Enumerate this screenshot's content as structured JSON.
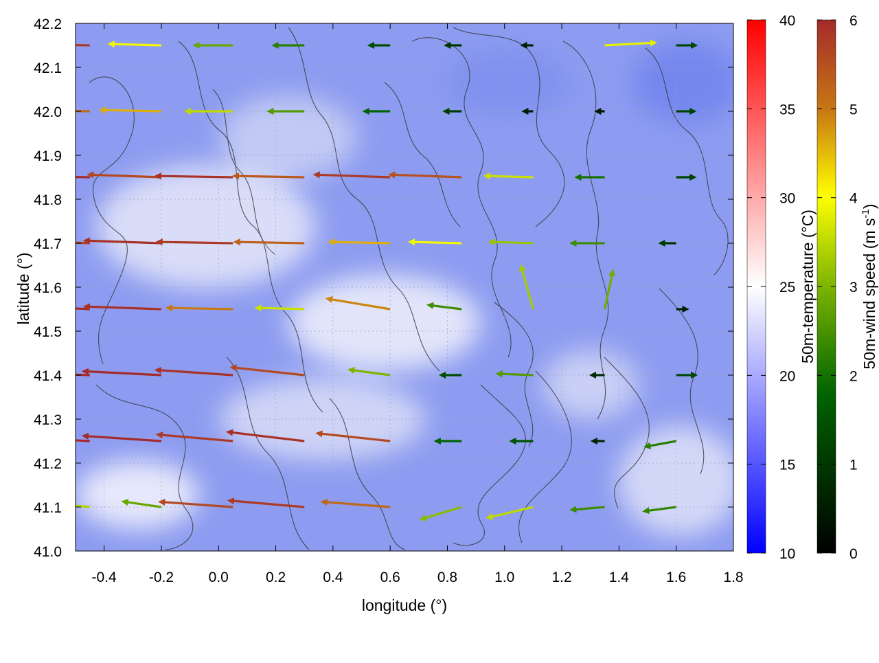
{
  "chart_data": {
    "type": "vector-field",
    "title": "",
    "xlabel": "longitude (°)",
    "ylabel": "latitude (°)",
    "xlim": [
      -0.5,
      1.8
    ],
    "ylim": [
      41.0,
      42.2
    ],
    "xticks": [
      "-0.4",
      "-0.2",
      "0.0",
      "0.2",
      "0.4",
      "0.6",
      "0.8",
      "1.0",
      "1.2",
      "1.4",
      "1.6",
      "1.8"
    ],
    "xtick_values": [
      -0.4,
      -0.2,
      0.0,
      0.2,
      0.4,
      0.6,
      0.8,
      1.0,
      1.2,
      1.4,
      1.6,
      1.8
    ],
    "yticks": [
      "41.0",
      "41.1",
      "41.2",
      "41.3",
      "41.4",
      "41.5",
      "41.6",
      "41.7",
      "41.8",
      "41.9",
      "42.0",
      "42.1",
      "42.2"
    ],
    "ytick_values": [
      41.0,
      41.1,
      41.2,
      41.3,
      41.4,
      41.5,
      41.6,
      41.7,
      41.8,
      41.9,
      42.0,
      42.1,
      42.2
    ],
    "grid": true,
    "background_field": {
      "label": "50m-temperature (°C)",
      "range": [
        10,
        40
      ],
      "ticks": [
        "10",
        "15",
        "20",
        "25",
        "30",
        "35",
        "40"
      ],
      "tick_values": [
        10,
        15,
        20,
        25,
        30,
        35,
        40
      ],
      "colormap": [
        "#0000ff",
        "#ffffff",
        "#ff0000"
      ],
      "field_color_main": "#8c9cf0",
      "field_color_light": "#dfe3f8"
    },
    "vector_colorbar": {
      "label_main": "50m-wind speed (m s",
      "label_sup": "-1",
      "label_end": ")",
      "range": [
        0,
        6
      ],
      "ticks": [
        "0",
        "1",
        "2",
        "3",
        "4",
        "5",
        "6"
      ],
      "tick_values": [
        0,
        1,
        2,
        3,
        4,
        5,
        6
      ],
      "colormap": [
        "#000000",
        "#006400",
        "#7cb400",
        "#ffff00",
        "#c87814",
        "#a52a2a"
      ]
    },
    "vectors": [
      {
        "lon": -0.45,
        "lat": 42.15,
        "u": -5.8,
        "v": 0.1,
        "speed": 5.8
      },
      {
        "lon": -0.2,
        "lat": 42.15,
        "u": -3.9,
        "v": 0.1,
        "speed": 3.9
      },
      {
        "lon": 0.05,
        "lat": 42.15,
        "u": -2.8,
        "v": 0.0,
        "speed": 2.8
      },
      {
        "lon": 0.3,
        "lat": 42.15,
        "u": -2.2,
        "v": 0.0,
        "speed": 2.2
      },
      {
        "lon": 0.6,
        "lat": 42.15,
        "u": -1.4,
        "v": 0.0,
        "speed": 1.4
      },
      {
        "lon": 0.85,
        "lat": 42.15,
        "u": -1.0,
        "v": 0.0,
        "speed": 1.0
      },
      {
        "lon": 1.1,
        "lat": 42.15,
        "u": -0.6,
        "v": 0.0,
        "speed": 0.6
      },
      {
        "lon": 1.35,
        "lat": 42.15,
        "u": 3.8,
        "v": 0.2,
        "speed": 3.8
      },
      {
        "lon": 1.6,
        "lat": 42.15,
        "u": 1.3,
        "v": 0.0,
        "speed": 1.3
      },
      {
        "lon": -0.45,
        "lat": 42.0,
        "u": -5.2,
        "v": 0.1,
        "speed": 5.2
      },
      {
        "lon": -0.2,
        "lat": 42.0,
        "u": -4.6,
        "v": 0.1,
        "speed": 4.6
      },
      {
        "lon": 0.05,
        "lat": 42.0,
        "u": -3.5,
        "v": 0.0,
        "speed": 3.5
      },
      {
        "lon": 0.3,
        "lat": 42.0,
        "u": -2.6,
        "v": 0.0,
        "speed": 2.6
      },
      {
        "lon": 0.6,
        "lat": 42.0,
        "u": -1.8,
        "v": 0.0,
        "speed": 1.8
      },
      {
        "lon": 0.85,
        "lat": 42.0,
        "u": -1.1,
        "v": 0.0,
        "speed": 1.1
      },
      {
        "lon": 1.1,
        "lat": 42.0,
        "u": -0.5,
        "v": 0.0,
        "speed": 0.5
      },
      {
        "lon": 1.35,
        "lat": 42.0,
        "u": -0.4,
        "v": 0.0,
        "speed": 0.4
      },
      {
        "lon": 1.6,
        "lat": 42.0,
        "u": 1.2,
        "v": 0.0,
        "speed": 1.2
      },
      {
        "lon": -0.45,
        "lat": 41.85,
        "u": -6.0,
        "v": 0.1,
        "speed": 6.0
      },
      {
        "lon": -0.2,
        "lat": 41.85,
        "u": -5.6,
        "v": 0.2,
        "speed": 5.6
      },
      {
        "lon": 0.05,
        "lat": 41.85,
        "u": -5.9,
        "v": 0.1,
        "speed": 5.9
      },
      {
        "lon": 0.3,
        "lat": 41.85,
        "u": -5.4,
        "v": 0.1,
        "speed": 5.4
      },
      {
        "lon": 0.6,
        "lat": 41.85,
        "u": -5.8,
        "v": 0.2,
        "speed": 5.8
      },
      {
        "lon": 0.85,
        "lat": 41.85,
        "u": -5.5,
        "v": 0.2,
        "speed": 5.5
      },
      {
        "lon": 1.1,
        "lat": 41.85,
        "u": -3.6,
        "v": 0.1,
        "speed": 3.6
      },
      {
        "lon": 1.35,
        "lat": 41.85,
        "u": -2.0,
        "v": 0.0,
        "speed": 2.0
      },
      {
        "lon": 1.6,
        "lat": 41.85,
        "u": 1.2,
        "v": 0.0,
        "speed": 1.2
      },
      {
        "lon": -0.45,
        "lat": 41.7,
        "u": -5.7,
        "v": 0.2,
        "speed": 5.7
      },
      {
        "lon": -0.2,
        "lat": 41.7,
        "u": -5.9,
        "v": 0.2,
        "speed": 5.9
      },
      {
        "lon": 0.05,
        "lat": 41.7,
        "u": -5.8,
        "v": 0.1,
        "speed": 5.8
      },
      {
        "lon": 0.3,
        "lat": 41.7,
        "u": -5.3,
        "v": 0.1,
        "speed": 5.3
      },
      {
        "lon": 0.6,
        "lat": 41.7,
        "u": -4.6,
        "v": 0.1,
        "speed": 4.6
      },
      {
        "lon": 0.85,
        "lat": 41.7,
        "u": -3.9,
        "v": 0.1,
        "speed": 3.9
      },
      {
        "lon": 1.1,
        "lat": 41.7,
        "u": -3.2,
        "v": 0.1,
        "speed": 3.2
      },
      {
        "lon": 1.35,
        "lat": 41.7,
        "u": -2.4,
        "v": 0.0,
        "speed": 2.4
      },
      {
        "lon": 1.6,
        "lat": 41.7,
        "u": -1.0,
        "v": 0.0,
        "speed": 1.0
      },
      {
        "lon": -0.45,
        "lat": 41.55,
        "u": -6.0,
        "v": 0.3,
        "speed": 6.0
      },
      {
        "lon": -0.2,
        "lat": 41.55,
        "u": -5.9,
        "v": 0.2,
        "speed": 5.9
      },
      {
        "lon": 0.05,
        "lat": 41.55,
        "u": -5.0,
        "v": 0.1,
        "speed": 5.0
      },
      {
        "lon": 0.3,
        "lat": 41.55,
        "u": -3.6,
        "v": 0.1,
        "speed": 3.6
      },
      {
        "lon": 0.6,
        "lat": 41.55,
        "u": -4.8,
        "v": 0.8,
        "speed": 4.9
      },
      {
        "lon": 0.85,
        "lat": 41.55,
        "u": -2.4,
        "v": 0.3,
        "speed": 2.4
      },
      {
        "lon": 1.1,
        "lat": 41.55,
        "u": -0.9,
        "v": 3.2,
        "speed": 3.3
      },
      {
        "lon": 1.35,
        "lat": 41.55,
        "u": 0.6,
        "v": 2.8,
        "speed": 2.9
      },
      {
        "lon": 1.6,
        "lat": 41.55,
        "u": 0.6,
        "v": 0.0,
        "speed": 0.6
      },
      {
        "lon": -0.45,
        "lat": 41.4,
        "u": -6.0,
        "v": 0.2,
        "speed": 6.0
      },
      {
        "lon": -0.2,
        "lat": 41.4,
        "u": -6.0,
        "v": 0.3,
        "speed": 6.0
      },
      {
        "lon": 0.05,
        "lat": 41.4,
        "u": -5.9,
        "v": 0.4,
        "speed": 5.9
      },
      {
        "lon": 0.3,
        "lat": 41.4,
        "u": -5.6,
        "v": 0.6,
        "speed": 5.6
      },
      {
        "lon": 0.6,
        "lat": 41.4,
        "u": -3.0,
        "v": 0.4,
        "speed": 3.0
      },
      {
        "lon": 0.85,
        "lat": 41.4,
        "u": -1.4,
        "v": 0.0,
        "speed": 1.4
      },
      {
        "lon": 1.1,
        "lat": 41.4,
        "u": -2.6,
        "v": 0.1,
        "speed": 2.6
      },
      {
        "lon": 1.35,
        "lat": 41.4,
        "u": -0.8,
        "v": 0.0,
        "speed": 0.8
      },
      {
        "lon": 1.6,
        "lat": 41.4,
        "u": 1.3,
        "v": 0.0,
        "speed": 1.3
      },
      {
        "lon": -0.45,
        "lat": 41.25,
        "u": -6.0,
        "v": 0.3,
        "speed": 6.0
      },
      {
        "lon": -0.2,
        "lat": 41.25,
        "u": -6.0,
        "v": 0.4,
        "speed": 6.0
      },
      {
        "lon": 0.05,
        "lat": 41.25,
        "u": -5.8,
        "v": 0.5,
        "speed": 5.8
      },
      {
        "lon": 0.3,
        "lat": 41.25,
        "u": -5.9,
        "v": 0.7,
        "speed": 5.9
      },
      {
        "lon": 0.6,
        "lat": 41.25,
        "u": -5.6,
        "v": 0.6,
        "speed": 5.6
      },
      {
        "lon": 0.85,
        "lat": 41.25,
        "u": -1.8,
        "v": 0.0,
        "speed": 1.8
      },
      {
        "lon": 1.1,
        "lat": 41.25,
        "u": -1.5,
        "v": 0.0,
        "speed": 1.5
      },
      {
        "lon": 1.35,
        "lat": 41.25,
        "u": -0.7,
        "v": 0.0,
        "speed": 0.7
      },
      {
        "lon": 1.6,
        "lat": 41.25,
        "u": -2.2,
        "v": -0.4,
        "speed": 2.2
      },
      {
        "lon": -0.45,
        "lat": 41.1,
        "u": -3.4,
        "v": 0.3,
        "speed": 3.4
      },
      {
        "lon": -0.2,
        "lat": 41.1,
        "u": -2.8,
        "v": 0.4,
        "speed": 2.8
      },
      {
        "lon": 0.05,
        "lat": 41.1,
        "u": -5.6,
        "v": 0.4,
        "speed": 5.6
      },
      {
        "lon": 0.3,
        "lat": 41.1,
        "u": -5.8,
        "v": 0.5,
        "speed": 5.8
      },
      {
        "lon": 0.6,
        "lat": 41.1,
        "u": -5.2,
        "v": 0.4,
        "speed": 5.2
      },
      {
        "lon": 0.85,
        "lat": 41.1,
        "u": -3.0,
        "v": -0.9,
        "speed": 3.1
      },
      {
        "lon": 1.1,
        "lat": 41.1,
        "u": -3.4,
        "v": -0.8,
        "speed": 3.5
      },
      {
        "lon": 1.35,
        "lat": 41.1,
        "u": -2.4,
        "v": -0.2,
        "speed": 2.4
      },
      {
        "lon": 1.6,
        "lat": 41.1,
        "u": -2.3,
        "v": -0.3,
        "speed": 2.3
      }
    ]
  }
}
